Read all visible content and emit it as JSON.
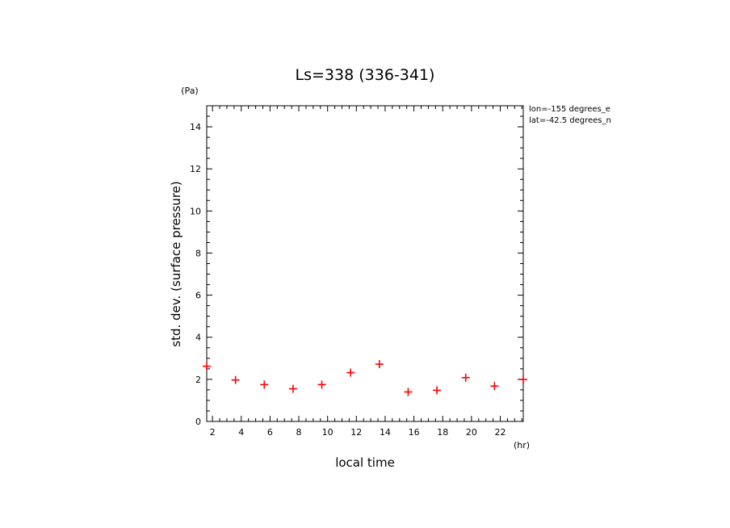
{
  "chart_data": {
    "type": "scatter",
    "title": "Ls=338 (336-341)",
    "xlabel": "local time",
    "ylabel": "std. dev. (surface pressure)",
    "x_unit": "(hr)",
    "y_unit": "(Pa)",
    "xlim": [
      1.6,
      23.6
    ],
    "ylim": [
      0,
      15
    ],
    "x_ticks": [
      2,
      4,
      6,
      8,
      10,
      12,
      14,
      16,
      18,
      20,
      22
    ],
    "y_ticks": [
      0,
      2,
      4,
      6,
      8,
      10,
      12,
      14
    ],
    "annotations": [
      "lon=-155 degrees_e",
      "lat=-42.5 degrees_n"
    ],
    "marker_color": "#ff0000",
    "series": [
      {
        "x": [
          1.6,
          3.6,
          5.6,
          7.6,
          9.6,
          11.6,
          13.6,
          15.6,
          17.6,
          19.6,
          21.6,
          23.6
        ],
        "y": [
          2.62,
          1.97,
          1.75,
          1.55,
          1.75,
          2.32,
          2.72,
          1.4,
          1.48,
          2.08,
          1.68,
          1.99
        ]
      }
    ]
  }
}
